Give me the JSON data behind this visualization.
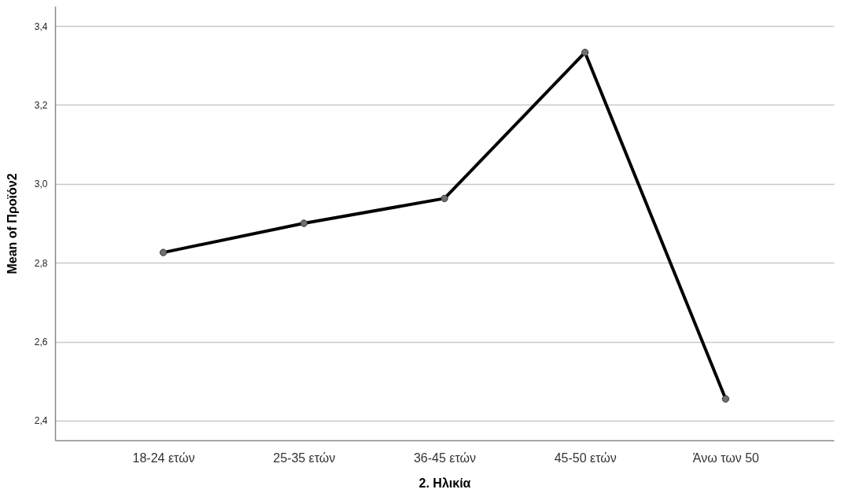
{
  "chart_data": {
    "type": "line",
    "xlabel": "2. Ηλικία",
    "ylabel": "Mean of Προϊόν2",
    "categories": [
      "18-24 ετών",
      "25-35 ετών",
      "36-45 ετών",
      "45-50 ετών",
      "Άνω των 50"
    ],
    "series": [
      {
        "color": "#000000",
        "values": [
          2.826,
          2.9,
          2.963,
          3.333,
          2.455
        ]
      }
    ],
    "ylim": [
      2.35,
      3.45
    ],
    "yticks": [
      {
        "value": 2.4,
        "label": "2,4"
      },
      {
        "value": 2.6,
        "label": "2,6"
      },
      {
        "value": 2.8,
        "label": "2,8"
      },
      {
        "value": 3.0,
        "label": "3,0"
      },
      {
        "value": 3.2,
        "label": "3,2"
      },
      {
        "value": 3.4,
        "label": "3,4"
      }
    ],
    "grid": "y",
    "marker": "circle",
    "line_style": "solid"
  }
}
